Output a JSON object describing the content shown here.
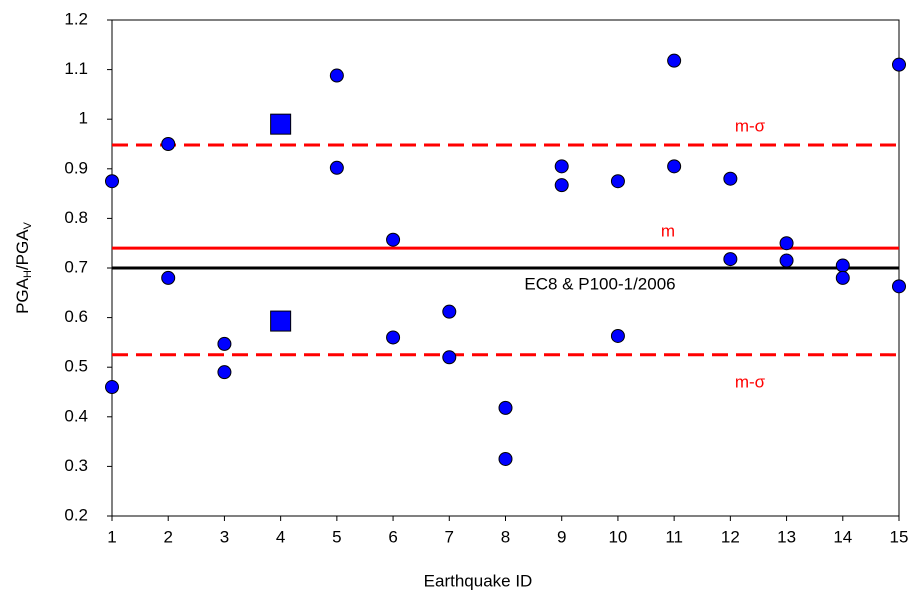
{
  "chart_data": {
    "type": "scatter",
    "x_label": "Earthquake ID",
    "y_label": {
      "main1": "PGA",
      "sub1": "H",
      "main2": "/PGA",
      "sub2": "V"
    },
    "xlim": [
      1,
      15
    ],
    "xticks": [
      1,
      2,
      3,
      4,
      5,
      6,
      7,
      8,
      9,
      10,
      11,
      12,
      13,
      14,
      15
    ],
    "ylim": [
      0.2,
      1.2
    ],
    "yticks": [
      0.2,
      0.3,
      0.4,
      0.5,
      0.6,
      0.7,
      0.8,
      0.9,
      1,
      1.1,
      1.2
    ],
    "grid": false,
    "series": [
      {
        "marker": "circle",
        "color": "#0000ff",
        "x": [
          1,
          1,
          2,
          2,
          3,
          3,
          5,
          5,
          6,
          6,
          7,
          7,
          8,
          8,
          9,
          9,
          10,
          10,
          11,
          11,
          12,
          12,
          13,
          13,
          14,
          14,
          15,
          15
        ],
        "values": [
          0.875,
          0.46,
          0.95,
          0.68,
          0.547,
          0.49,
          1.088,
          0.902,
          0.757,
          0.56,
          0.612,
          0.52,
          0.418,
          0.315,
          0.905,
          0.867,
          0.875,
          0.563,
          1.118,
          0.905,
          0.88,
          0.718,
          0.75,
          0.715,
          0.705,
          0.68,
          1.11,
          0.663
        ]
      },
      {
        "marker": "square",
        "color": "#0000ff",
        "x": [
          4,
          4
        ],
        "values": [
          0.99,
          0.593
        ]
      }
    ],
    "reference_lines": [
      {
        "value": 0.948,
        "label": "m-σ",
        "color": "#ff0000",
        "style": "dashed"
      },
      {
        "value": 0.74,
        "label": "m",
        "color": "#ff0000",
        "style": "solid"
      },
      {
        "value": 0.7,
        "label": "EC8 & P100-1/2006",
        "color": "#000000",
        "style": "solid"
      },
      {
        "value": 0.525,
        "label": "m-σ",
        "color": "#ff0000",
        "style": "dashed"
      }
    ]
  }
}
